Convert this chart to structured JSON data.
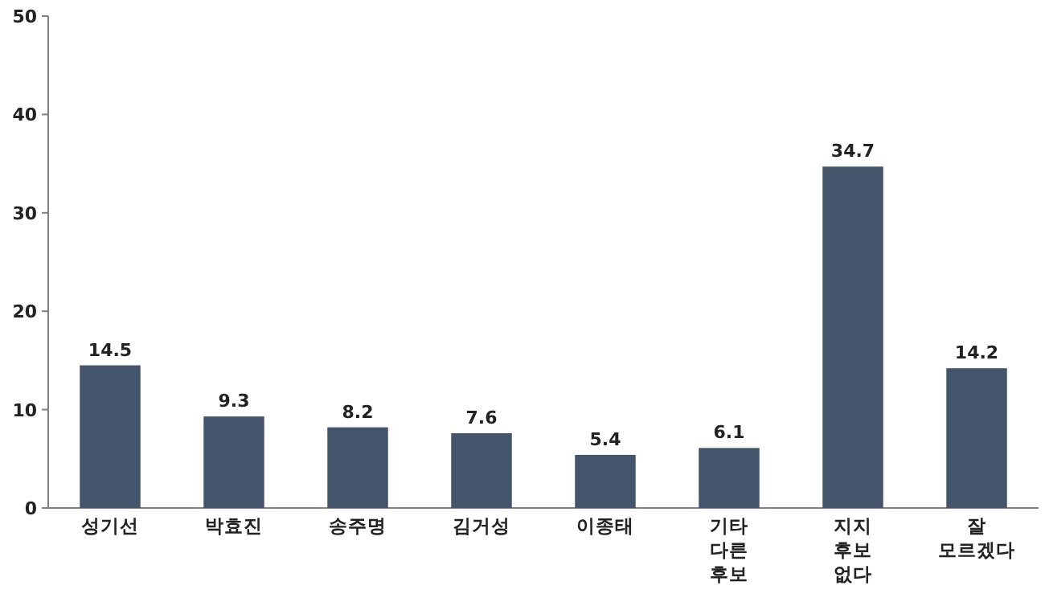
{
  "chart_data": {
    "type": "bar",
    "categories": [
      "성기선",
      "박효진",
      "송주명",
      "김거성",
      "이종태",
      "기타 다른 후보",
      "지지 후보 없다",
      "잘 모르겠다"
    ],
    "values": [
      14.5,
      9.3,
      8.2,
      7.6,
      5.4,
      6.1,
      34.7,
      14.2
    ],
    "color": "#44546a",
    "ylim": [
      0,
      50
    ],
    "yticks": [
      0,
      10,
      20,
      30,
      40,
      50
    ],
    "data_labels": true,
    "grid": false
  }
}
